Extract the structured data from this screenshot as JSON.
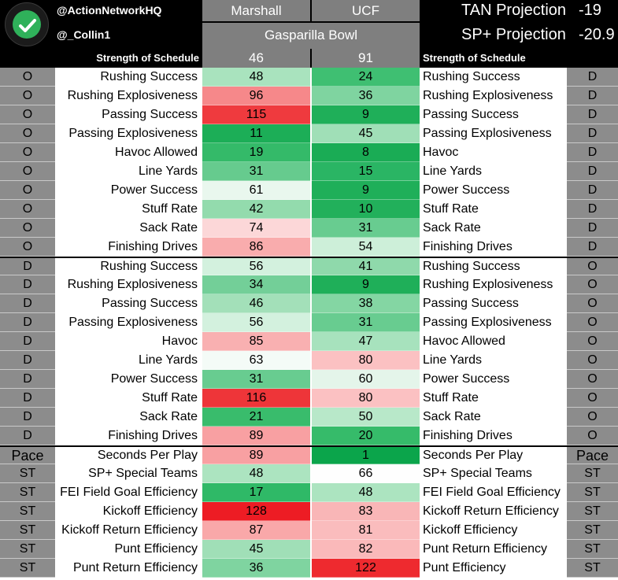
{
  "header": {
    "handle1": "@ActionNetworkHQ",
    "handle2": "@_Collin1",
    "team_left": "Marshall",
    "team_right": "UCF",
    "bowl": "Gasparilla Bowl",
    "projections": [
      {
        "label": "TAN Projection",
        "value": "-19"
      },
      {
        "label": "SP+ Projection",
        "value": "-20.9"
      }
    ]
  },
  "sos": {
    "left_label": "Strength of Schedule",
    "left_value": "46",
    "right_value": "91",
    "right_label": "Strength of Schedule"
  },
  "colors": {
    "header_bg": "#000000",
    "panel_gray": "#7f7f7f",
    "side_gray": "#8c8c8c",
    "logo_green": "#2fb15a"
  },
  "rows": [
    {
      "side_left": "O",
      "label_left": "Rushing Success",
      "val_left": "48",
      "color_left": "#a9e3be",
      "val_right": "24",
      "color_right": "#3fbf72",
      "label_right": "Rushing Success",
      "side_right": "D"
    },
    {
      "side_left": "O",
      "label_left": "Rushing Explosiveness",
      "val_left": "96",
      "color_left": "#f6888a",
      "val_right": "36",
      "color_right": "#7fd4a0",
      "label_right": "Rushing Explosiveness",
      "side_right": "D"
    },
    {
      "side_left": "O",
      "label_left": "Passing Success",
      "val_left": "115",
      "color_left": "#ef3a3e",
      "val_right": "9",
      "color_right": "#1faf59",
      "label_right": "Passing Success",
      "side_right": "D"
    },
    {
      "side_left": "O",
      "label_left": "Passing Explosiveness",
      "val_left": "11",
      "color_left": "#1cae57",
      "val_right": "45",
      "color_right": "#a0dfb7",
      "label_right": "Passing Explosiveness",
      "side_right": "D"
    },
    {
      "side_left": "O",
      "label_left": "Havoc Allowed",
      "val_left": "19",
      "color_left": "#34ba69",
      "val_right": "8",
      "color_right": "#1aac55",
      "label_right": "Havoc",
      "side_right": "D"
    },
    {
      "side_left": "O",
      "label_left": "Line Yards",
      "val_left": "31",
      "color_left": "#66cb8e",
      "val_right": "15",
      "color_right": "#2ab564",
      "label_right": "Line Yards",
      "side_right": "D"
    },
    {
      "side_left": "O",
      "label_left": "Power Success",
      "val_left": "61",
      "color_left": "#e9f7ee",
      "val_right": "9",
      "color_right": "#1faf59",
      "label_right": "Power Success",
      "side_right": "D"
    },
    {
      "side_left": "O",
      "label_left": "Stuff Rate",
      "val_left": "42",
      "color_left": "#93dbad",
      "val_right": "10",
      "color_right": "#22b05b",
      "label_right": "Stuff Rate",
      "side_right": "D"
    },
    {
      "side_left": "O",
      "label_left": "Sack Rate",
      "val_left": "74",
      "color_left": "#fcd7d8",
      "val_right": "31",
      "color_right": "#68cc90",
      "label_right": "Sack Rate",
      "side_right": "D"
    },
    {
      "side_left": "O",
      "label_left": "Finishing Drives",
      "val_left": "86",
      "color_left": "#f9acad",
      "val_right": "54",
      "color_right": "#cdefd9",
      "label_right": "Finishing Drives",
      "side_right": "D"
    },
    {
      "side_left": "D",
      "label_left": "Rushing Success",
      "val_left": "56",
      "color_left": "#d3f1de",
      "val_right": "41",
      "color_right": "#8fd9ab",
      "label_right": "Rushing Success",
      "side_right": "O",
      "sep": true
    },
    {
      "side_left": "D",
      "label_left": "Rushing Explosiveness",
      "val_left": "34",
      "color_left": "#73cf98",
      "val_right": "9",
      "color_right": "#1faf59",
      "label_right": "Rushing Explosiveness",
      "side_right": "O"
    },
    {
      "side_left": "D",
      "label_left": "Passing Success",
      "val_left": "46",
      "color_left": "#a3e0b9",
      "val_right": "38",
      "color_right": "#84d6a3",
      "label_right": "Passing Success",
      "side_right": "O"
    },
    {
      "side_left": "D",
      "label_left": "Passing Explosiveness",
      "val_left": "56",
      "color_left": "#d3f1de",
      "val_right": "31",
      "color_right": "#68cc90",
      "label_right": "Passing Explosiveness",
      "side_right": "O"
    },
    {
      "side_left": "D",
      "label_left": "Havoc",
      "val_left": "85",
      "color_left": "#f9b0b1",
      "val_right": "47",
      "color_right": "#a7e2bd",
      "label_right": "Havoc Allowed",
      "side_right": "O"
    },
    {
      "side_left": "D",
      "label_left": "Line Yards",
      "val_left": "63",
      "color_left": "#f4fbf7",
      "val_right": "80",
      "color_right": "#fbc1c2",
      "label_right": "Line Yards",
      "side_right": "O"
    },
    {
      "side_left": "D",
      "label_left": "Power Success",
      "val_left": "31",
      "color_left": "#68cc90",
      "val_right": "60",
      "color_right": "#e4f5ea",
      "label_right": "Power Success",
      "side_right": "O"
    },
    {
      "side_left": "D",
      "label_left": "Stuff Rate",
      "val_left": "116",
      "color_left": "#ee3539",
      "val_right": "80",
      "color_right": "#fbc1c2",
      "label_right": "Stuff Rate",
      "side_right": "O"
    },
    {
      "side_left": "D",
      "label_left": "Sack Rate",
      "val_left": "21",
      "color_left": "#39bc6c",
      "val_right": "50",
      "color_right": "#b8e8c9",
      "label_right": "Sack Rate",
      "side_right": "O"
    },
    {
      "side_left": "D",
      "label_left": "Finishing Drives",
      "val_left": "89",
      "color_left": "#f8a0a2",
      "val_right": "20",
      "color_right": "#36bb6a",
      "label_right": "Finishing Drives",
      "side_right": "O"
    },
    {
      "side_left": "Pace",
      "label_left": "Seconds Per Play",
      "val_left": "89",
      "color_left": "#f8a0a2",
      "val_right": "1",
      "color_right": "#0ba54b",
      "label_right": "Seconds Per Play",
      "side_right": "Pace",
      "sep": true
    },
    {
      "side_left": "ST",
      "label_left": "SP+ Special Teams",
      "val_left": "48",
      "color_left": "#ace4c0",
      "val_right": "66",
      "color_right": "#fefefe",
      "label_right": "SP+ Special Teams",
      "side_right": "ST"
    },
    {
      "side_left": "ST",
      "label_left": "FEI Field Goal Efficiency",
      "val_left": "17",
      "color_left": "#2fb967",
      "val_right": "48",
      "color_right": "#ace4c0",
      "label_right": "FEI Field Goal Efficiency",
      "side_right": "ST"
    },
    {
      "side_left": "ST",
      "label_left": "Kickoff Efficiency",
      "val_left": "128",
      "color_left": "#ed1c24",
      "val_right": "83",
      "color_right": "#f9b6b7",
      "label_right": "Kickoff Return Efficiency",
      "side_right": "ST"
    },
    {
      "side_left": "ST",
      "label_left": "Kickoff Return Efficiency",
      "val_left": "87",
      "color_left": "#f9a8a9",
      "val_right": "81",
      "color_right": "#fabcbd",
      "label_right": "Kickoff Efficiency",
      "side_right": "ST"
    },
    {
      "side_left": "ST",
      "label_left": "Punt Efficiency",
      "val_left": "45",
      "color_left": "#a0dfb7",
      "val_right": "82",
      "color_right": "#fab9ba",
      "label_right": "Punt Return Efficiency",
      "side_right": "ST"
    },
    {
      "side_left": "ST",
      "label_left": "Punt Return Efficiency",
      "val_left": "36",
      "color_left": "#7fd4a0",
      "val_right": "122",
      "color_right": "#ee2a2f",
      "label_right": "Punt Efficiency",
      "side_right": "ST"
    }
  ]
}
